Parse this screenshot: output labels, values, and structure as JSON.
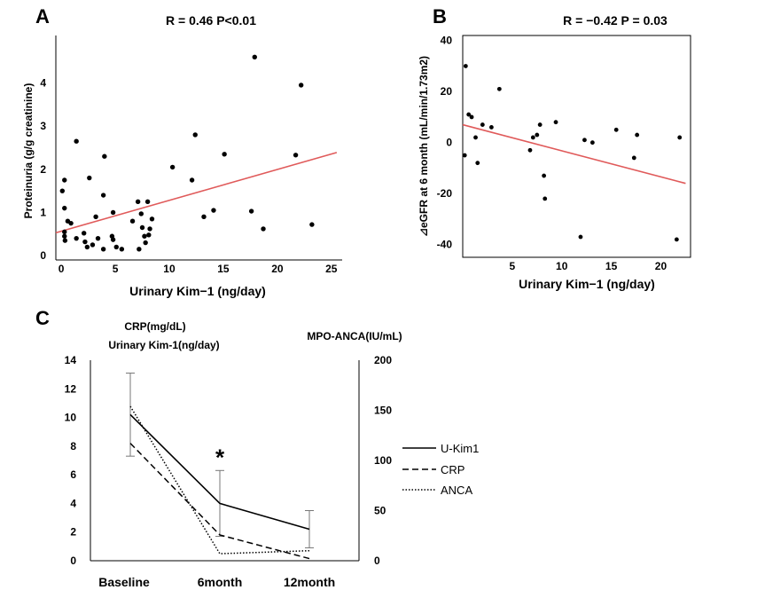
{
  "chart_data": [
    {
      "panel": "A",
      "type": "scatter",
      "stat_label": "R = 0.46  P<0.01",
      "xlabel": "Urinary Kim−1  (ng/day)",
      "ylabel": "Proteinuria (g/g creatinine)",
      "xlim": [
        -0.5,
        26
      ],
      "ylim": [
        -0.1,
        5.1
      ],
      "xticks": [
        "0",
        "5",
        "10",
        "15",
        "20",
        "25"
      ],
      "yticks": [
        "0",
        "1",
        "2",
        "3",
        "4"
      ],
      "trendline": {
        "x": [
          -0.5,
          25.5
        ],
        "y": [
          0.53,
          2.39
        ],
        "color": "#e05a5a"
      },
      "points": [
        [
          0.1,
          1.5
        ],
        [
          0.3,
          1.75
        ],
        [
          0.3,
          1.1
        ],
        [
          0.3,
          0.55
        ],
        [
          0.3,
          0.45
        ],
        [
          0.35,
          0.35
        ],
        [
          0.6,
          0.8
        ],
        [
          0.9,
          0.75
        ],
        [
          1.4,
          2.65
        ],
        [
          1.4,
          0.4
        ],
        [
          2.1,
          0.52
        ],
        [
          2.2,
          0.32
        ],
        [
          2.4,
          0.2
        ],
        [
          2.6,
          1.8
        ],
        [
          2.9,
          0.25
        ],
        [
          3.2,
          0.9
        ],
        [
          3.4,
          0.4
        ],
        [
          3.9,
          1.4
        ],
        [
          3.9,
          0.15
        ],
        [
          4.0,
          2.3
        ],
        [
          4.7,
          0.45
        ],
        [
          4.8,
          0.37
        ],
        [
          4.8,
          1.0
        ],
        [
          5.1,
          0.2
        ],
        [
          5.6,
          0.15
        ],
        [
          6.6,
          0.8
        ],
        [
          7.1,
          1.25
        ],
        [
          7.2,
          0.15
        ],
        [
          7.4,
          0.97
        ],
        [
          7.5,
          0.65
        ],
        [
          7.7,
          0.45
        ],
        [
          7.8,
          0.3
        ],
        [
          8.0,
          1.25
        ],
        [
          8.1,
          0.48
        ],
        [
          8.2,
          0.62
        ],
        [
          8.4,
          0.85
        ],
        [
          10.3,
          2.05
        ],
        [
          12.1,
          1.75
        ],
        [
          12.4,
          2.8
        ],
        [
          13.2,
          0.9
        ],
        [
          14.1,
          1.05
        ],
        [
          15.1,
          2.35
        ],
        [
          17.6,
          1.03
        ],
        [
          17.9,
          4.6
        ],
        [
          18.7,
          0.62
        ],
        [
          21.7,
          2.33
        ],
        [
          22.2,
          3.95
        ],
        [
          23.2,
          0.72
        ]
      ]
    },
    {
      "panel": "B",
      "type": "scatter",
      "stat_label": "R = −0.42  P = 0.03",
      "xlabel": "Urinary Kim−1  (ng/day)",
      "ylabel": "⊿eGFR at 6 month (mL/min/1.73m2)",
      "xlim": [
        0,
        23
      ],
      "ylim": [
        -45,
        42
      ],
      "xticks": [
        "5",
        "10",
        "15",
        "20"
      ],
      "yticks": [
        "-40",
        "-20",
        "0",
        "20",
        "40"
      ],
      "trendline": {
        "x": [
          0,
          22.5
        ],
        "y": [
          7,
          -16
        ],
        "color": "#e05a5a"
      },
      "points": [
        [
          0.2,
          -5
        ],
        [
          0.3,
          30
        ],
        [
          0.6,
          11
        ],
        [
          0.9,
          10
        ],
        [
          1.3,
          2
        ],
        [
          1.5,
          -8
        ],
        [
          2.0,
          7
        ],
        [
          2.9,
          6
        ],
        [
          3.7,
          21
        ],
        [
          6.8,
          -3
        ],
        [
          7.1,
          2
        ],
        [
          7.5,
          3
        ],
        [
          7.8,
          7
        ],
        [
          8.2,
          -13
        ],
        [
          8.3,
          -22
        ],
        [
          9.4,
          8
        ],
        [
          11.9,
          -37
        ],
        [
          12.3,
          1
        ],
        [
          13.1,
          0
        ],
        [
          15.5,
          5
        ],
        [
          17.3,
          -6
        ],
        [
          17.6,
          3
        ],
        [
          21.6,
          -38
        ],
        [
          21.9,
          2
        ]
      ]
    },
    {
      "panel": "C",
      "type": "line",
      "categories": [
        "Baseline",
        "6month",
        "12month"
      ],
      "left_axis_title_1": "CRP(mg/dL)",
      "left_axis_title_2": "Urinary Kim-1(ng/day)",
      "right_axis_title": "MPO-ANCA(IU/mL)",
      "left_ylim": [
        0,
        14
      ],
      "right_ylim": [
        0,
        200
      ],
      "left_ticks": [
        "0",
        "2",
        "4",
        "6",
        "8",
        "10",
        "12",
        "14"
      ],
      "right_ticks": [
        "0",
        "50",
        "100",
        "150",
        "200"
      ],
      "significance_marker": "*",
      "series": [
        {
          "name": "U-Kim1",
          "axis": "left",
          "values": [
            10.2,
            4.0,
            2.2
          ],
          "style": "solid",
          "error_upper": [
            13.1,
            6.3,
            3.5
          ],
          "error_lower": [
            7.3,
            1.7,
            0.9
          ]
        },
        {
          "name": "CRP",
          "axis": "left",
          "values": [
            8.2,
            1.8,
            0.15
          ],
          "style": "dashed"
        },
        {
          "name": "ANCA",
          "axis": "right",
          "values": [
            154,
            7,
            10
          ],
          "style": "dotted"
        }
      ]
    }
  ]
}
